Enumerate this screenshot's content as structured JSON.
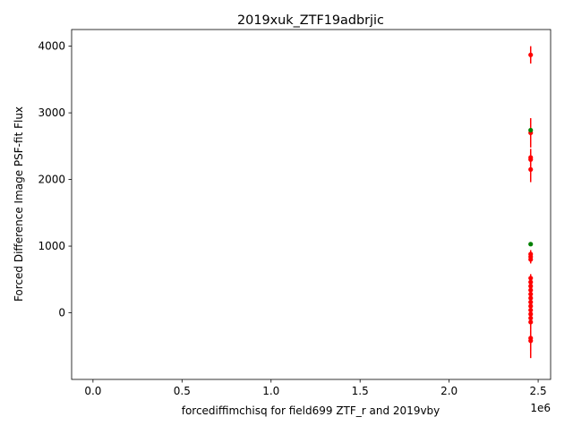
{
  "chart_data": {
    "type": "scatter",
    "title": "2019xuk_ZTF19adbrjic",
    "xlabel": "forcediffimchisq for field699 ZTF_r and 2019vby",
    "ylabel": "Forced Difference Image PSF-fit Flux",
    "x_offset_label": "1e6",
    "xlim": [
      -0.12,
      2.57
    ],
    "ylim": [
      -1000,
      4250
    ],
    "x_ticks": [
      0.0,
      0.5,
      1.0,
      1.5,
      2.0,
      2.5
    ],
    "x_tick_labels": [
      "0.0",
      "0.5",
      "1.0",
      "1.5",
      "2.0",
      "2.5"
    ],
    "y_ticks": [
      0,
      1000,
      2000,
      3000,
      4000
    ],
    "y_tick_labels": [
      "0",
      "1000",
      "2000",
      "3000",
      "4000"
    ],
    "grid": false,
    "colors": {
      "r_band": "#ff0000",
      "g_band": "#008000"
    },
    "series": [
      {
        "color": "#ff0000",
        "points": [
          {
            "x": 2.458,
            "y": 3870,
            "err": 130
          },
          {
            "x": 2.458,
            "y": 2700,
            "err": 220
          },
          {
            "x": 2.458,
            "y": 2330,
            "err": 130
          },
          {
            "x": 2.458,
            "y": 2300,
            "err": 120
          },
          {
            "x": 2.458,
            "y": 2150,
            "err": 190
          },
          {
            "x": 2.458,
            "y": 880,
            "err": 60
          },
          {
            "x": 2.458,
            "y": 840,
            "err": 60
          },
          {
            "x": 2.458,
            "y": 800,
            "err": 60
          },
          {
            "x": 2.458,
            "y": 520,
            "err": 60
          },
          {
            "x": 2.458,
            "y": 460,
            "err": 60
          },
          {
            "x": 2.458,
            "y": 400,
            "err": 60
          },
          {
            "x": 2.458,
            "y": 340,
            "err": 70
          },
          {
            "x": 2.458,
            "y": 280,
            "err": 70
          },
          {
            "x": 2.458,
            "y": 220,
            "err": 70
          },
          {
            "x": 2.458,
            "y": 160,
            "err": 70
          },
          {
            "x": 2.458,
            "y": 100,
            "err": 70
          },
          {
            "x": 2.458,
            "y": 40,
            "err": 80
          },
          {
            "x": 2.458,
            "y": -20,
            "err": 80
          },
          {
            "x": 2.458,
            "y": -80,
            "err": 90
          },
          {
            "x": 2.458,
            "y": -140,
            "err": 100
          },
          {
            "x": 2.458,
            "y": -380,
            "err": 300
          },
          {
            "x": 2.458,
            "y": -420,
            "err": 150
          }
        ]
      },
      {
        "color": "#008000",
        "points": [
          {
            "x": 2.458,
            "y": 2740,
            "err": 30
          },
          {
            "x": 2.458,
            "y": 1030,
            "err": 25
          }
        ]
      }
    ]
  }
}
